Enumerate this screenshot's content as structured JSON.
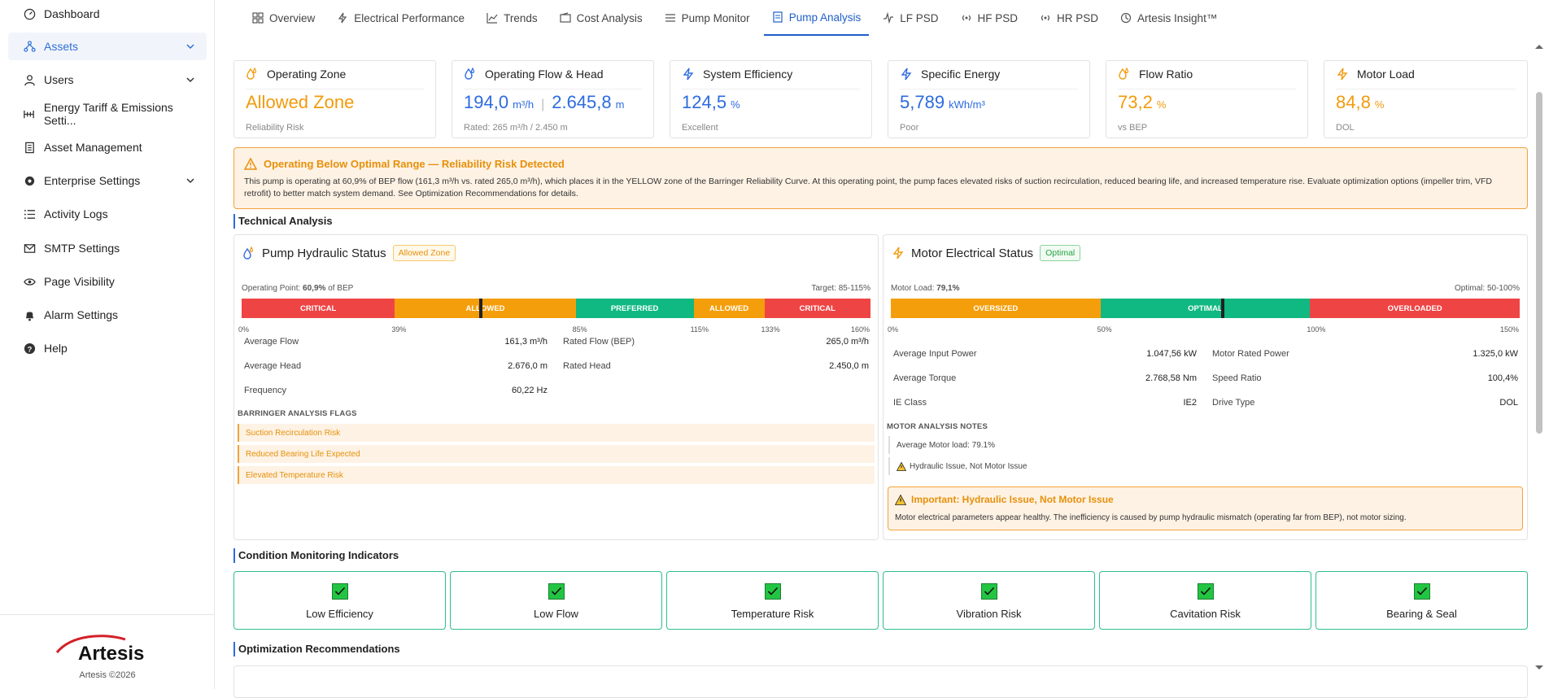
{
  "sidebar": {
    "items": [
      {
        "label": "Dashboard",
        "icon": "dashboard-icon",
        "active": false
      },
      {
        "label": "Assets",
        "icon": "assets-icon",
        "active": true
      },
      {
        "label": "Users",
        "icon": "user-icon",
        "active": false
      },
      {
        "label": "Energy Tariff & Emissions Setti...",
        "icon": "tariff-icon",
        "active": false
      },
      {
        "label": "Asset Management",
        "icon": "document-icon",
        "active": false
      },
      {
        "label": "Enterprise Settings",
        "icon": "gear-icon",
        "active": false
      },
      {
        "label": "Activity Logs",
        "icon": "list-icon",
        "active": false
      },
      {
        "label": "SMTP Settings",
        "icon": "mail-icon",
        "active": false
      },
      {
        "label": "Page Visibility",
        "icon": "eye-icon",
        "active": false
      },
      {
        "label": "Alarm Settings",
        "icon": "bell-icon",
        "active": false
      },
      {
        "label": "Help",
        "icon": "help-icon",
        "active": false
      }
    ],
    "logo_text": "Artesis",
    "copyright": "Artesis ©2026"
  },
  "tabs": [
    {
      "label": "Overview",
      "icon": "grid-icon"
    },
    {
      "label": "Electrical Performance",
      "icon": "bolt-icon"
    },
    {
      "label": "Trends",
      "icon": "trend-icon"
    },
    {
      "label": "Cost Analysis",
      "icon": "wallet-icon"
    },
    {
      "label": "Pump Monitor",
      "icon": "pump-icon"
    },
    {
      "label": "Pump Analysis",
      "icon": "document-icon",
      "active": true
    },
    {
      "label": "LF PSD",
      "icon": "pulse-icon"
    },
    {
      "label": "HF PSD",
      "icon": "radio-icon"
    },
    {
      "label": "HR PSD",
      "icon": "radio-icon"
    },
    {
      "label": "Artesis Insight™",
      "icon": "insight-icon"
    }
  ],
  "kpis": [
    {
      "title": "Operating Zone",
      "value": "Allowed Zone",
      "unit": "",
      "sub": "Reliability Risk",
      "color": "orange",
      "icon": "drops-icon"
    },
    {
      "title": "Operating Flow & Head",
      "value": "194,0",
      "unit": "m³/h",
      "value2": "2.645,8",
      "unit2": "m",
      "sub": "Rated: 265 m³/h / 2.450 m",
      "color": "blue",
      "icon": "drops-icon"
    },
    {
      "title": "System Efficiency",
      "value": "124,5",
      "unit": "%",
      "sub": "Excellent",
      "color": "blue",
      "icon": "bolt-icon"
    },
    {
      "title": "Specific Energy",
      "value": "5,789",
      "unit": "kWh/m³",
      "sub": "Poor",
      "color": "blue",
      "icon": "bolt-icon"
    },
    {
      "title": "Flow Ratio",
      "value": "73,2",
      "unit": "%",
      "sub": "vs BEP",
      "color": "orange",
      "icon": "drops-icon"
    },
    {
      "title": "Motor Load",
      "value": "84,8",
      "unit": "%",
      "sub": "DOL",
      "color": "orange",
      "icon": "bolt-icon"
    }
  ],
  "alert": {
    "title": "Operating Below Optimal Range — Reliability Risk Detected",
    "body": "This pump is operating at 60,9% of BEP flow (161,3 m³/h vs. rated 265,0 m³/h), which places it in the YELLOW zone of the Barringer Reliability Curve. At this operating point, the pump faces elevated risks of suction recirculation, reduced bearing life, and increased temperature rise. Evaluate optimization options (impeller trim, VFD retrofit) to better match system demand. See Optimization Recommendations for details."
  },
  "sections": {
    "technical": "Technical Analysis",
    "condition": "Condition Monitoring Indicators",
    "optimization": "Optimization Recommendations"
  },
  "hydraulic": {
    "title": "Pump Hydraulic Status",
    "badge": "Allowed Zone",
    "op_label": "Operating Point:",
    "op_value": "60,9%",
    "op_suffix": "of BEP",
    "target": "Target: 85-115%",
    "marker_pct": 60.9,
    "segments": [
      {
        "label": "CRITICAL",
        "from": 0,
        "to": 39,
        "color": "#ef4444"
      },
      {
        "label": "ALLOWED",
        "from": 39,
        "to": 85,
        "color": "#f59e0b"
      },
      {
        "label": "PREFERRED",
        "from": 85,
        "to": 115,
        "color": "#10b981"
      },
      {
        "label": "ALLOWED",
        "from": 115,
        "to": 133,
        "color": "#f59e0b"
      },
      {
        "label": "CRITICAL",
        "from": 133,
        "to": 160,
        "color": "#ef4444"
      }
    ],
    "ticks": [
      "0%",
      "39%",
      "85%",
      "115%",
      "133%",
      "160%"
    ],
    "left": [
      {
        "k": "Average Flow",
        "v": "161,3 m³/h"
      },
      {
        "k": "Average Head",
        "v": "2.676,0 m"
      },
      {
        "k": "Frequency",
        "v": "60,22 Hz"
      }
    ],
    "right": [
      {
        "k": "Rated Flow (BEP)",
        "v": "265,0 m³/h"
      },
      {
        "k": "Rated Head",
        "v": "2.450,0 m"
      }
    ],
    "flags_title": "BARRINGER ANALYSIS FLAGS",
    "flags": [
      "Suction Recirculation Risk",
      "Reduced Bearing Life Expected",
      "Elevated Temperature Risk"
    ]
  },
  "motor": {
    "title": "Motor Electrical Status",
    "badge": "Optimal",
    "load_label": "Motor Load:",
    "load_value": "79,1%",
    "optimal": "Optimal: 50-100%",
    "marker_pct": 79.1,
    "segments": [
      {
        "label": "OVERSIZED",
        "from": 0,
        "to": 50,
        "color": "#f59e0b"
      },
      {
        "label": "OPTIMAL",
        "from": 50,
        "to": 100,
        "color": "#10b981"
      },
      {
        "label": "OVERLOADED",
        "from": 100,
        "to": 150,
        "color": "#ef4444"
      }
    ],
    "ticks": [
      "0%",
      "50%",
      "100%",
      "150%"
    ],
    "left": [
      {
        "k": "Average Input Power",
        "v": "1.047,56 kW"
      },
      {
        "k": "Average Torque",
        "v": "2.768,58 Nm"
      },
      {
        "k": "IE Class",
        "v": "IE2"
      }
    ],
    "right": [
      {
        "k": "Motor Rated Power",
        "v": "1.325,0 kW"
      },
      {
        "k": "Speed Ratio",
        "v": "100,4%"
      },
      {
        "k": "Drive Type",
        "v": "DOL"
      }
    ],
    "notes_title": "MOTOR ANALYSIS NOTES",
    "notes": [
      "Average Motor load: 79.1%",
      "Hydraulic Issue, Not Motor Issue"
    ],
    "important_title": "Important: Hydraulic Issue, Not Motor Issue",
    "important_body": "Motor electrical parameters appear healthy. The inefficiency is caused by pump hydraulic mismatch (operating far from BEP), not motor sizing."
  },
  "condition": [
    {
      "label": "Low Efficiency"
    },
    {
      "label": "Low Flow"
    },
    {
      "label": "Temperature Risk"
    },
    {
      "label": "Vibration Risk"
    },
    {
      "label": "Cavitation Risk"
    },
    {
      "label": "Bearing & Seal"
    }
  ]
}
